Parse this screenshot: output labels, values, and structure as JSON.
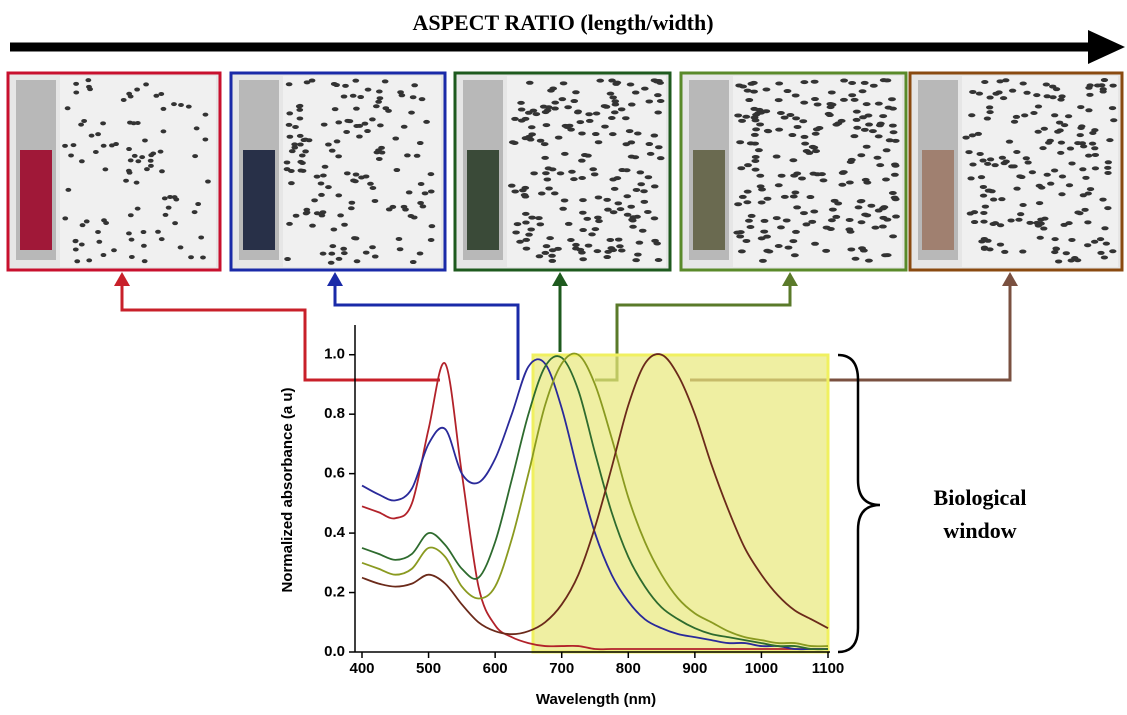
{
  "header": {
    "title": "ASPECT RATIO (length/width)"
  },
  "chart_data": {
    "type": "line",
    "x_label": "Wavelength (nm)",
    "y_label": "Normalized absorbance (a u)",
    "annotation_lines": [
      "Biological",
      "window"
    ],
    "x": [
      400,
      425,
      450,
      475,
      500,
      525,
      550,
      575,
      600,
      625,
      650,
      675,
      700,
      725,
      750,
      775,
      800,
      825,
      850,
      875,
      900,
      925,
      950,
      975,
      1000,
      1025,
      1050,
      1075,
      1100
    ],
    "xlim": [
      400,
      1100
    ],
    "xticks": [
      400,
      500,
      600,
      700,
      800,
      900,
      1000,
      1100
    ],
    "ylim": [
      0,
      1.1
    ],
    "yticks": [
      {
        "value": 0,
        "label": "0.0"
      },
      0.2,
      0.4,
      0.6,
      0.8,
      {
        "value": 1,
        "label": "1.0"
      }
    ],
    "series": [
      {
        "color": "#b2222a",
        "values": [
          0.49,
          0.47,
          0.45,
          0.5,
          0.75,
          0.97,
          0.6,
          0.22,
          0.09,
          0.05,
          0.03,
          0.02,
          0.02,
          0.02,
          0.01,
          0.01,
          0.01,
          0.01,
          0.01,
          0.01,
          0.01,
          0.01,
          0.01,
          0.01,
          0.01,
          0.01,
          0.01,
          0.01,
          0.01
        ]
      },
      {
        "color": "#2a2a9a",
        "values": [
          0.56,
          0.53,
          0.51,
          0.55,
          0.7,
          0.75,
          0.6,
          0.57,
          0.65,
          0.8,
          0.96,
          0.97,
          0.82,
          0.6,
          0.4,
          0.26,
          0.17,
          0.11,
          0.08,
          0.06,
          0.05,
          0.04,
          0.03,
          0.03,
          0.02,
          0.02,
          0.01,
          0.01,
          0.01
        ]
      },
      {
        "color": "#2e6b2e",
        "values": [
          0.35,
          0.33,
          0.31,
          0.33,
          0.4,
          0.36,
          0.28,
          0.25,
          0.37,
          0.58,
          0.8,
          0.96,
          0.99,
          0.88,
          0.67,
          0.47,
          0.32,
          0.22,
          0.15,
          0.11,
          0.08,
          0.06,
          0.05,
          0.04,
          0.03,
          0.02,
          0.02,
          0.01,
          0.01
        ]
      },
      {
        "color": "#8a9a20",
        "values": [
          0.3,
          0.28,
          0.26,
          0.28,
          0.35,
          0.32,
          0.22,
          0.18,
          0.22,
          0.38,
          0.6,
          0.83,
          0.97,
          1.0,
          0.9,
          0.72,
          0.52,
          0.37,
          0.26,
          0.18,
          0.13,
          0.1,
          0.07,
          0.05,
          0.04,
          0.03,
          0.03,
          0.02,
          0.02
        ]
      },
      {
        "color": "#6b2a1a",
        "values": [
          0.25,
          0.23,
          0.22,
          0.23,
          0.26,
          0.23,
          0.16,
          0.1,
          0.07,
          0.06,
          0.07,
          0.1,
          0.16,
          0.26,
          0.42,
          0.62,
          0.83,
          0.97,
          1.0,
          0.93,
          0.8,
          0.63,
          0.48,
          0.35,
          0.26,
          0.19,
          0.14,
          0.11,
          0.08
        ]
      }
    ]
  }
}
